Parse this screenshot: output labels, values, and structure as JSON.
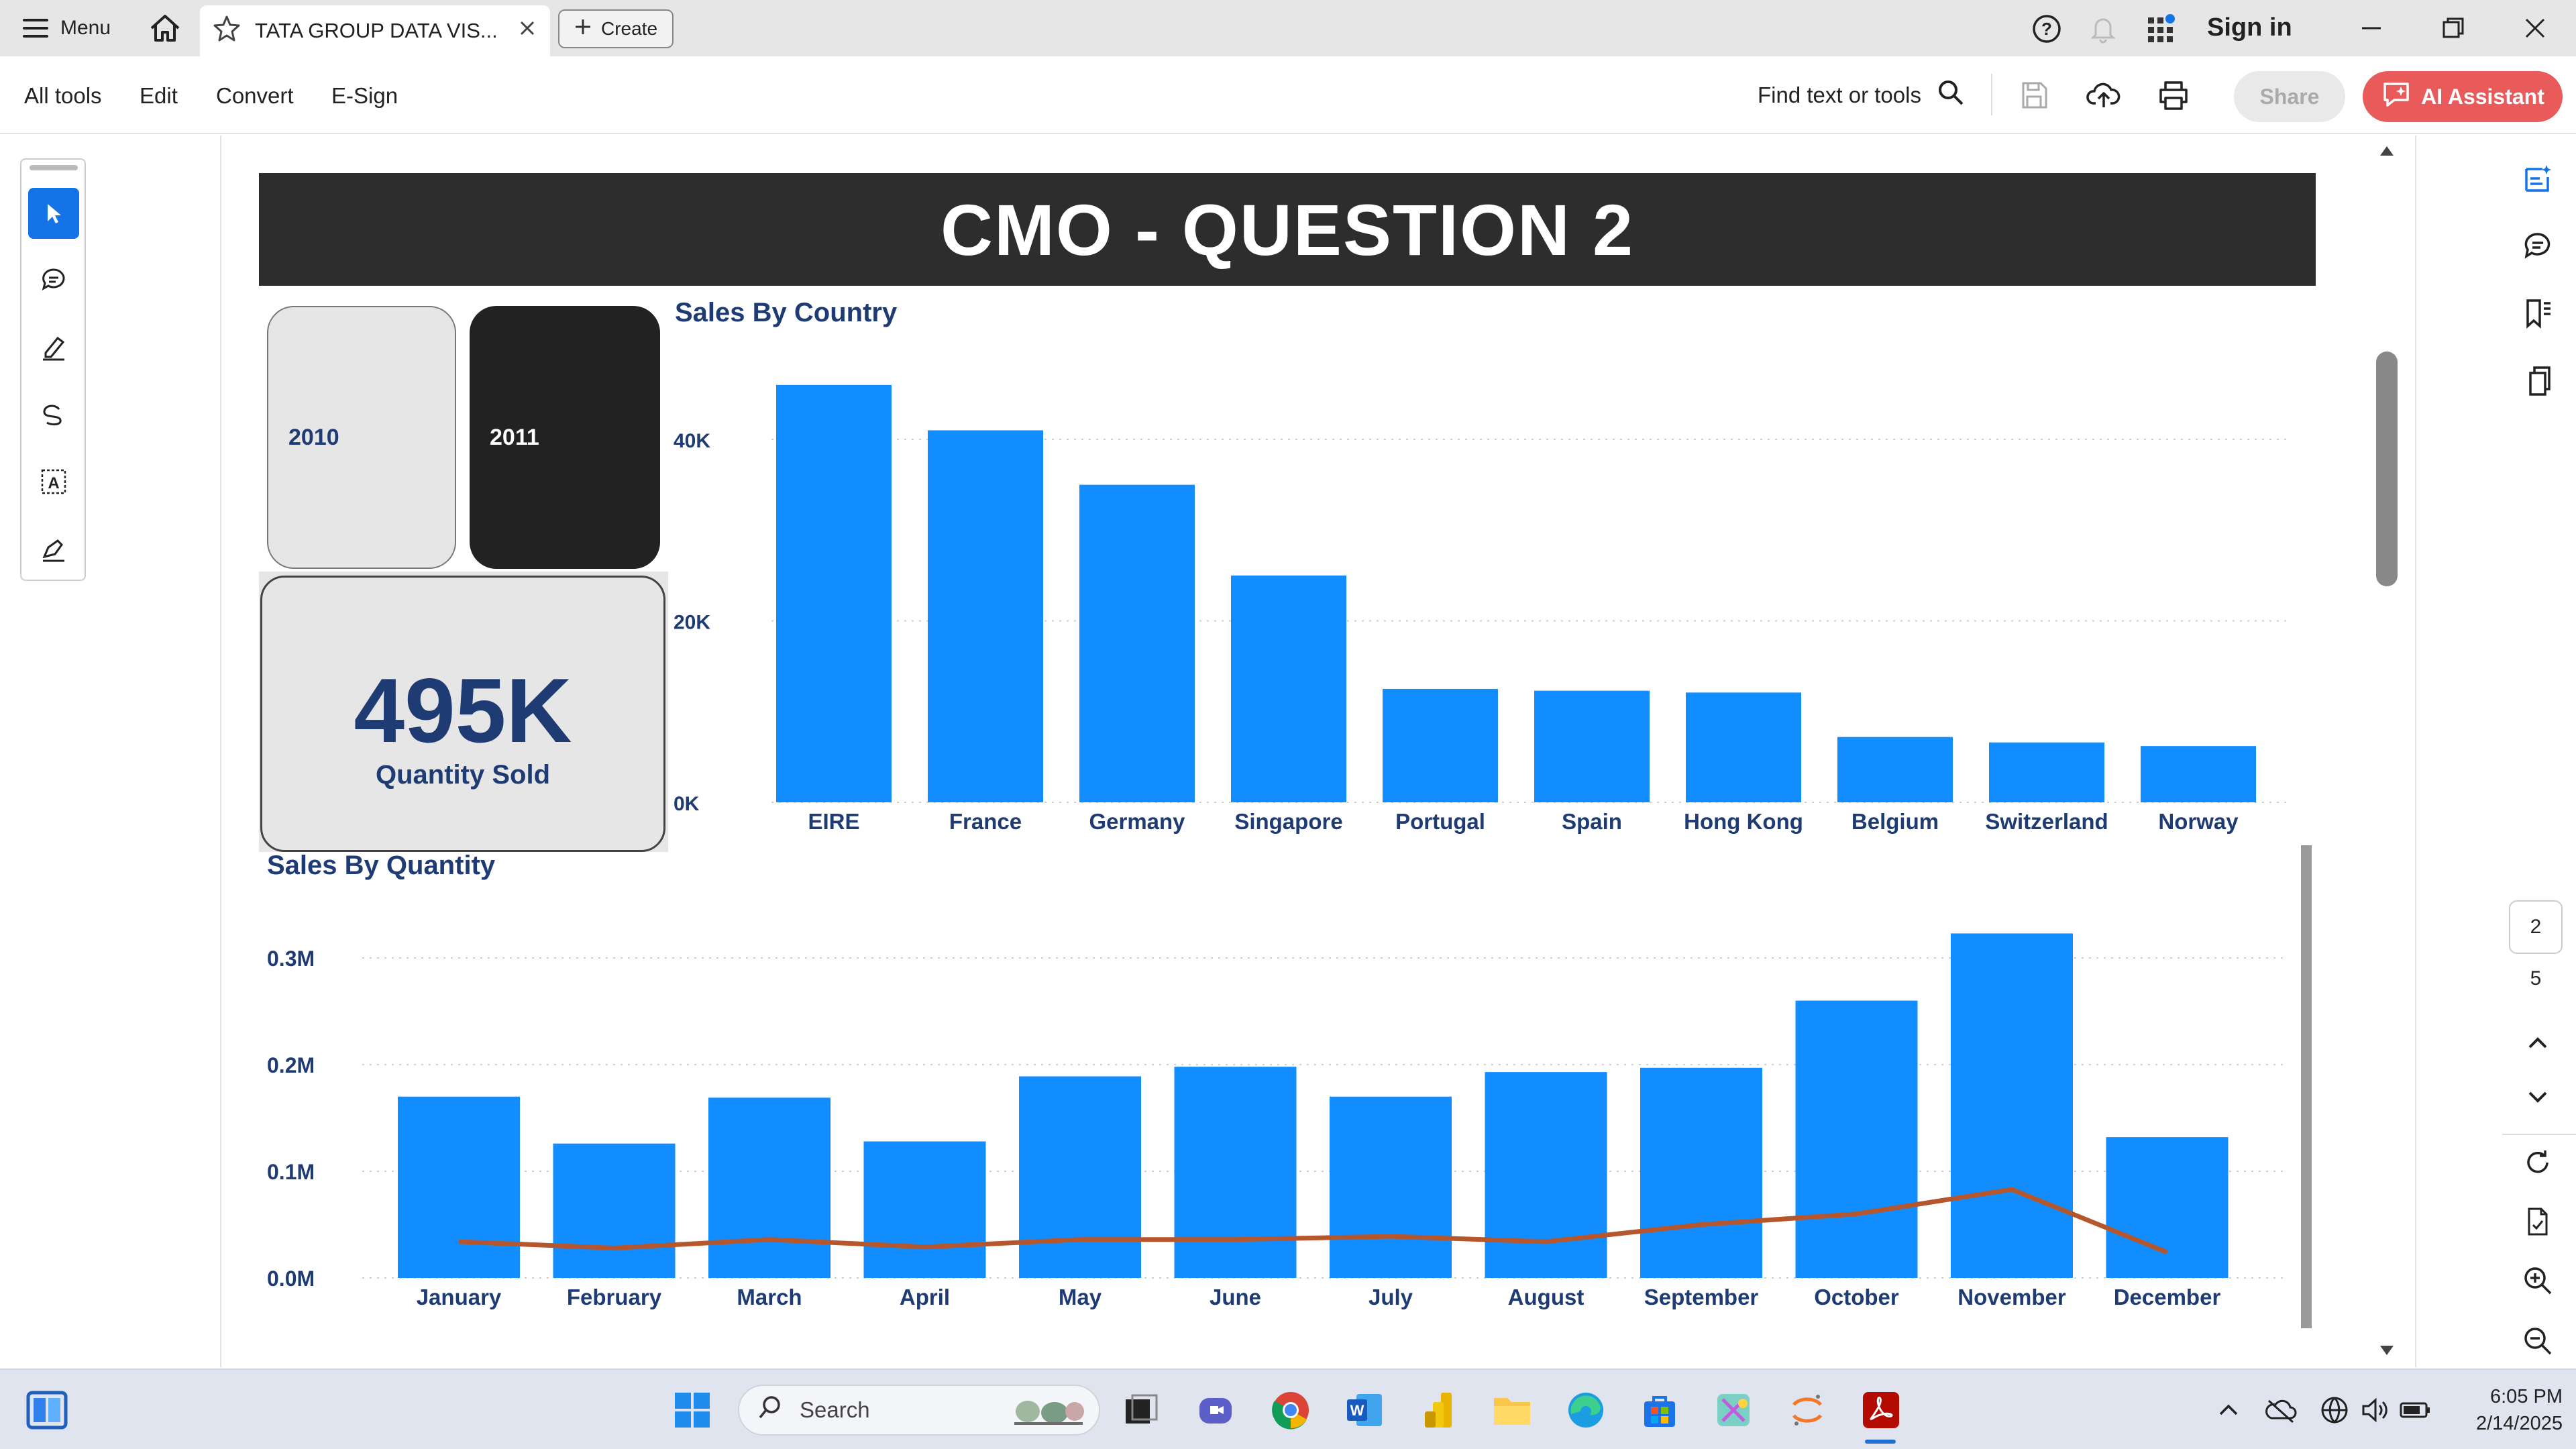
{
  "tabbar": {
    "menu_label": "Menu",
    "tab_title": "TATA GROUP DATA VIS...",
    "create_label": "Create",
    "sign_in": "Sign in"
  },
  "toolbar": {
    "menus": [
      "All tools",
      "Edit",
      "Convert",
      "E-Sign"
    ],
    "find_label": "Find text or tools",
    "share_label": "Share",
    "ai_label": "AI Assistant"
  },
  "page_nav": {
    "current_page": "2",
    "total_pages": "5"
  },
  "report": {
    "title": "CMO - QUESTION 2",
    "slicers": [
      "2010",
      "2011"
    ],
    "selected_year": "2011",
    "kpi_value": "495K",
    "kpi_label": "Quantity Sold"
  },
  "chart_data": [
    {
      "type": "bar",
      "title": "Sales By Country",
      "categories": [
        "EIRE",
        "France",
        "Germany",
        "Singapore",
        "Portugal",
        "Spain",
        "Hong Kong",
        "Belgium",
        "Switzerland",
        "Norway"
      ],
      "values": [
        46000,
        41000,
        35000,
        25000,
        12500,
        12300,
        12100,
        7200,
        6600,
        6200
      ],
      "yticks": [
        "0K",
        "20K",
        "40K"
      ],
      "ylim": [
        0,
        50000
      ],
      "color": "#118dff",
      "grid": true
    },
    {
      "type": "bar",
      "title": "Sales By Quantity",
      "categories": [
        "January",
        "February",
        "March",
        "April",
        "May",
        "June",
        "July",
        "August",
        "September",
        "October",
        "November",
        "December"
      ],
      "series": [
        {
          "type": "bar",
          "values": [
            0.17,
            0.126,
            0.169,
            0.128,
            0.189,
            0.198,
            0.17,
            0.193,
            0.197,
            0.26,
            0.323,
            0.132
          ],
          "color": "#118dff"
        },
        {
          "type": "line",
          "values": [
            0.034,
            0.028,
            0.036,
            0.029,
            0.036,
            0.036,
            0.039,
            0.034,
            0.05,
            0.06,
            0.083,
            0.024
          ],
          "color": "#b5562c"
        }
      ],
      "yticks": [
        "0.0M",
        "0.1M",
        "0.2M",
        "0.3M"
      ],
      "ylim": [
        0,
        0.34
      ],
      "grid": true
    }
  ],
  "taskbar": {
    "search_label": "Search",
    "time": "6:05 PM",
    "date": "2/14/2025"
  }
}
